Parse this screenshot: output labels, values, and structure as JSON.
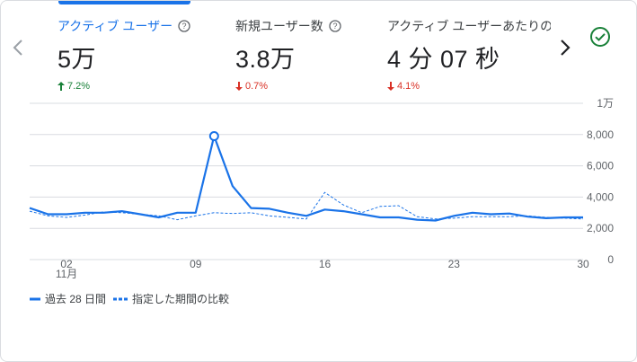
{
  "metrics": [
    {
      "label": "アクティブ ユーザー",
      "value": "5万",
      "change": "7.2%",
      "direction": "up",
      "active": true
    },
    {
      "label": "新規ユーザー数",
      "value": "3.8万",
      "change": "0.7%",
      "direction": "down",
      "active": false
    },
    {
      "label": "アクティブ ユーザーあたりの",
      "value": "4 分 07 秒",
      "change": "4.1%",
      "direction": "down",
      "active": false
    }
  ],
  "colors": {
    "primary": "#1a73e8",
    "up": "#188038",
    "down": "#d93025",
    "grid": "#dadce0",
    "success": "#188038"
  },
  "icons": {
    "prev": "chevron-left-icon",
    "next": "chevron-right-icon",
    "help": "help-circle-icon",
    "status": "check-circle-icon"
  },
  "chart_data": {
    "type": "line",
    "x": [
      "10/31",
      "11/1",
      "11/2",
      "11/3",
      "11/4",
      "11/5",
      "11/6",
      "11/7",
      "11/8",
      "11/9",
      "11/10",
      "11/11",
      "11/12",
      "11/13",
      "11/14",
      "11/15",
      "11/16",
      "11/17",
      "11/18",
      "11/19",
      "11/20",
      "11/21",
      "11/22",
      "11/23",
      "11/24",
      "11/25",
      "11/26",
      "11/27",
      "11/28",
      "11/29",
      "11/30"
    ],
    "x_ticks": [
      {
        "index": 2,
        "label": "02",
        "sublabel": "11月"
      },
      {
        "index": 9,
        "label": "09",
        "sublabel": ""
      },
      {
        "index": 16,
        "label": "16",
        "sublabel": ""
      },
      {
        "index": 23,
        "label": "23",
        "sublabel": ""
      },
      {
        "index": 30,
        "label": "30",
        "sublabel": ""
      }
    ],
    "y_ticks": [
      {
        "value": 10000,
        "label": "1万"
      },
      {
        "value": 8000,
        "label": "8,000"
      },
      {
        "value": 6000,
        "label": "6,000"
      },
      {
        "value": 4000,
        "label": "4,000"
      },
      {
        "value": 2000,
        "label": "2,000"
      },
      {
        "value": 0,
        "label": "0"
      }
    ],
    "ylim": [
      0,
      10000
    ],
    "grid": true,
    "series": [
      {
        "name": "過去 28 日間",
        "style": "solid",
        "values": [
          3300,
          2900,
          2900,
          3000,
          3000,
          3100,
          2900,
          2700,
          3000,
          3000,
          7900,
          4700,
          3300,
          3250,
          3000,
          2800,
          3200,
          3100,
          2900,
          2700,
          2700,
          2550,
          2500,
          2800,
          3000,
          2900,
          2950,
          2750,
          2650,
          2700,
          2700
        ]
      },
      {
        "name": "指定した期間の比較",
        "style": "dashed",
        "values": [
          3100,
          2800,
          2700,
          2850,
          3050,
          3000,
          2900,
          2800,
          2550,
          2800,
          3000,
          2950,
          3000,
          2800,
          2700,
          2600,
          4300,
          3500,
          3000,
          3400,
          3450,
          2750,
          2600,
          2650,
          2750,
          2750,
          2750,
          2800,
          2700,
          2650,
          2600
        ]
      }
    ],
    "highlight": {
      "series": 0,
      "index": 10
    }
  }
}
